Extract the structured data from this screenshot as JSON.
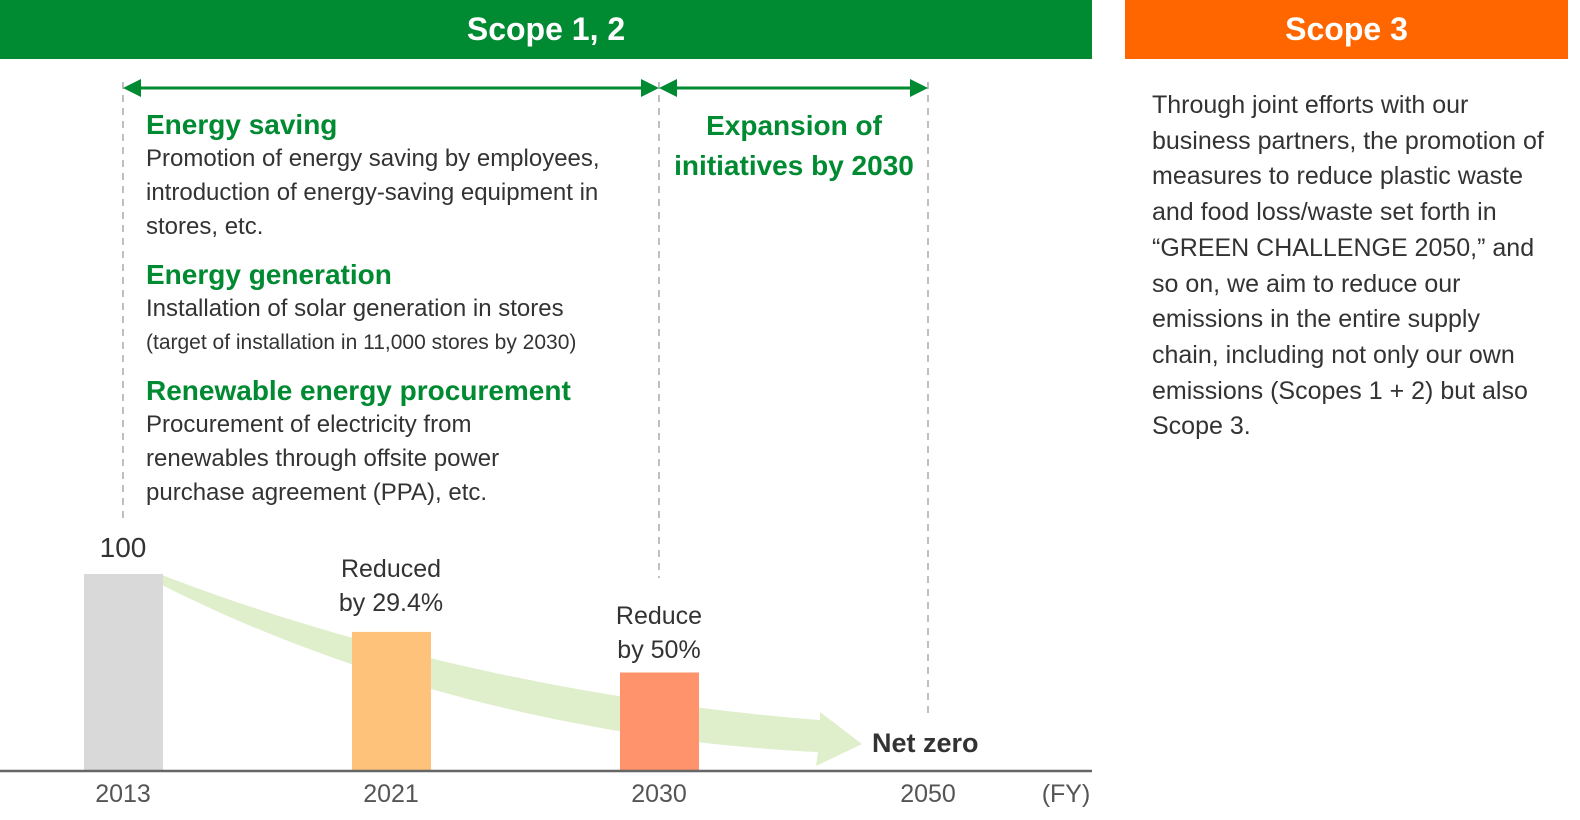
{
  "scope12": {
    "title": "Scope 1, 2",
    "color": "#008a32"
  },
  "scope3": {
    "title": "Scope 3",
    "color": "#ff6600",
    "text": "Through joint efforts with our business partners, the promotion of measures to reduce plastic waste and food loss/waste set forth in “GREEN CHALLENGE 2050,” and so on, we aim to reduce our emissions in the entire supply chain, including not only our own emissions (Scopes 1 + 2) but also Scope 3."
  },
  "initiatives": [
    {
      "title": "Energy saving",
      "body": "Promotion of energy saving by employees, introduction of energy-saving equipment in stores, etc."
    },
    {
      "title": "Energy generation",
      "body": "Installation of solar generation in stores",
      "note": "(target of installation in 11,000 stores by 2030)"
    },
    {
      "title": "Renewable energy procurement",
      "body": "Procurement of electricity from renewables through offsite power purchase agreement (PPA), etc."
    }
  ],
  "expansion": {
    "title": "Expansion of initiatives by 2030"
  },
  "bars": [
    {
      "year": "2013",
      "value": 100,
      "label": "100",
      "color": "#d9d9d9"
    },
    {
      "year": "2021",
      "value": 70.6,
      "label": "Reduced by 29.4%",
      "color": "#ffc27a"
    },
    {
      "year": "2030",
      "value": 50,
      "label": "Reduce by 50%",
      "color": "#ff936b"
    },
    {
      "year": "2050",
      "value": 0,
      "label": "Net zero"
    }
  ],
  "axis_unit": "(FY)",
  "trend_color": "#dfeecb"
}
